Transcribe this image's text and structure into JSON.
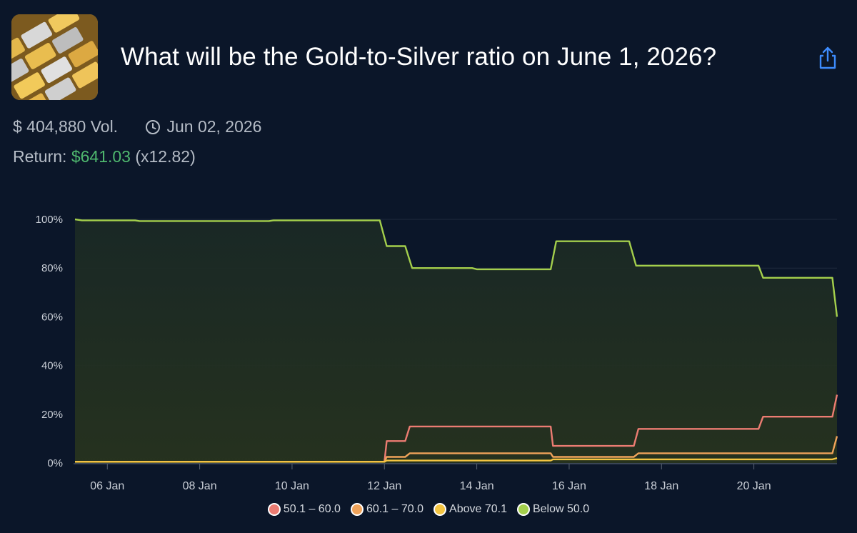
{
  "market": {
    "title": "What will be the Gold-to-Silver ratio on June 1, 2026?",
    "volume": "$ 404,880 Vol.",
    "end_date": "Jun 02, 2026",
    "return_label": "Return:",
    "return_amount": "$641.03",
    "return_multiplier": "(x12.82)"
  },
  "icons": {
    "thumbnail": "gold-silver-bars-image",
    "share": "share-icon",
    "clock": "clock-icon"
  },
  "colors": {
    "background": "#0b1629",
    "accent_green": "#4fb86e",
    "share_blue": "#3d8bfd"
  },
  "chart_data": {
    "type": "line",
    "title": "",
    "xlabel": "",
    "ylabel": "",
    "x_range_days": [
      5.3,
      21.8
    ],
    "ylim": [
      0,
      100
    ],
    "y_ticks": [
      "0%",
      "20%",
      "40%",
      "60%",
      "80%",
      "100%"
    ],
    "x_ticks": [
      {
        "label": "06 Jan",
        "day": 6
      },
      {
        "label": "08 Jan",
        "day": 8
      },
      {
        "label": "10 Jan",
        "day": 10
      },
      {
        "label": "12 Jan",
        "day": 12
      },
      {
        "label": "14 Jan",
        "day": 14
      },
      {
        "label": "16 Jan",
        "day": 16
      },
      {
        "label": "18 Jan",
        "day": 18
      },
      {
        "label": "20 Jan",
        "day": 20
      }
    ],
    "legend_position": "bottom-center",
    "series": [
      {
        "name": "50.1 – 60.0",
        "color": "#ec7c72",
        "points": [
          [
            5.3,
            0.5
          ],
          [
            12.0,
            0.5
          ],
          [
            12.05,
            9
          ],
          [
            12.45,
            9
          ],
          [
            12.55,
            15
          ],
          [
            15.6,
            15
          ],
          [
            15.65,
            7
          ],
          [
            17.4,
            7
          ],
          [
            17.5,
            14
          ],
          [
            20.1,
            14
          ],
          [
            20.2,
            19
          ],
          [
            21.7,
            19
          ],
          [
            21.8,
            28
          ]
        ]
      },
      {
        "name": "60.1 – 70.0",
        "color": "#f0a35a",
        "points": [
          [
            5.3,
            0.5
          ],
          [
            12.0,
            0.5
          ],
          [
            12.05,
            2.5
          ],
          [
            12.45,
            2.5
          ],
          [
            12.55,
            4
          ],
          [
            15.6,
            4
          ],
          [
            15.65,
            2.5
          ],
          [
            17.4,
            2.5
          ],
          [
            17.5,
            4
          ],
          [
            21.7,
            4
          ],
          [
            21.8,
            11
          ]
        ]
      },
      {
        "name": "Above 70.1",
        "color": "#f4c542",
        "points": [
          [
            5.3,
            0.5
          ],
          [
            12.0,
            0.5
          ],
          [
            12.05,
            1
          ],
          [
            15.6,
            1
          ],
          [
            15.65,
            1.5
          ],
          [
            21.7,
            1.5
          ],
          [
            21.8,
            2
          ]
        ]
      },
      {
        "name": "Below 50.0",
        "color": "#a4cf4c",
        "points": [
          [
            5.3,
            100
          ],
          [
            5.45,
            99.6
          ],
          [
            6.6,
            99.6
          ],
          [
            6.7,
            99.3
          ],
          [
            9.5,
            99.3
          ],
          [
            9.6,
            99.6
          ],
          [
            11.9,
            99.6
          ],
          [
            12.05,
            89
          ],
          [
            12.45,
            89
          ],
          [
            12.6,
            80
          ],
          [
            13.9,
            80
          ],
          [
            14.0,
            79.5
          ],
          [
            15.6,
            79.5
          ],
          [
            15.72,
            91
          ],
          [
            17.3,
            91
          ],
          [
            17.45,
            81
          ],
          [
            20.1,
            81
          ],
          [
            20.2,
            76
          ],
          [
            21.7,
            76
          ],
          [
            21.8,
            60
          ]
        ]
      }
    ]
  },
  "legend": [
    {
      "label": "50.1 – 60.0",
      "color": "#ec7c72"
    },
    {
      "label": "60.1 – 70.0",
      "color": "#f0a35a"
    },
    {
      "label": "Above 70.1",
      "color": "#f4c542"
    },
    {
      "label": "Below 50.0",
      "color": "#a4cf4c"
    }
  ]
}
